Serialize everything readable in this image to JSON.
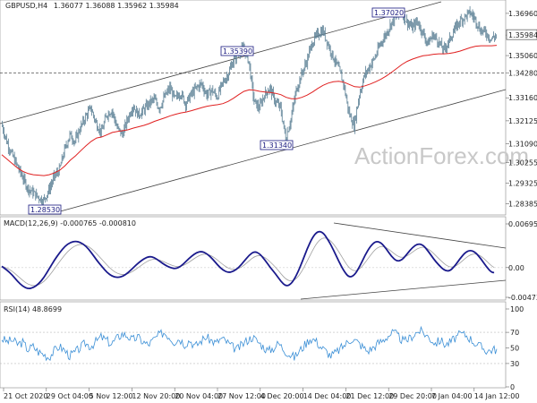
{
  "price_header": {
    "symbol": "GBPUSD,H4",
    "values": "1.36077 1.36088 1.35962 1.35984"
  },
  "macd_header": "MACD(12,26,9) -0.000765 -0.000810",
  "rsi_header": "RSI(14) 48.8699",
  "watermark": "ActionForex.com",
  "colors": {
    "price": "#5a7f94",
    "ma": "#e02020",
    "macd": "#1a1a8c",
    "signal": "#a0a0a0",
    "channel": "#333333",
    "rsi": "#3b8fd6"
  },
  "chart_data": [
    {
      "type": "line",
      "panel": "price",
      "y_ticks": [
        "1.36960",
        "1.35984",
        "1.35060",
        "1.34280",
        "1.33160",
        "1.32125",
        "1.31090",
        "1.30255",
        "1.29325",
        "1.28385"
      ],
      "ylim": [
        1.2805,
        1.374
      ],
      "current_price": "1.35984",
      "horizontal_line": "1.34280",
      "annotations": [
        "1.28530",
        "1.35390",
        "1.31340",
        "1.37020"
      ],
      "price_path": [
        1.32,
        1.312,
        1.306,
        1.301,
        1.296,
        1.291,
        1.289,
        1.287,
        1.2853,
        1.29,
        1.296,
        1.299,
        1.308,
        1.315,
        1.312,
        1.318,
        1.323,
        1.327,
        1.32,
        1.316,
        1.324,
        1.326,
        1.318,
        1.315,
        1.322,
        1.328,
        1.324,
        1.326,
        1.329,
        1.331,
        1.327,
        1.332,
        1.336,
        1.331,
        1.334,
        1.329,
        1.333,
        1.336,
        1.338,
        1.333,
        1.335,
        1.332,
        1.338,
        1.342,
        1.348,
        1.352,
        1.3539,
        1.348,
        1.33,
        1.327,
        1.333,
        1.336,
        1.33,
        1.327,
        1.3134,
        1.322,
        1.335,
        1.342,
        1.348,
        1.356,
        1.36,
        1.362,
        1.356,
        1.35,
        1.345,
        1.338,
        1.325,
        1.319,
        1.333,
        1.342,
        1.346,
        1.35,
        1.356,
        1.36,
        1.365,
        1.368,
        1.3702,
        1.366,
        1.363,
        1.366,
        1.361,
        1.356,
        1.36,
        1.357,
        1.353,
        1.357,
        1.362,
        1.366,
        1.368,
        1.37,
        1.367,
        1.362,
        1.361,
        1.358,
        1.3598
      ],
      "ma_path": [
        1.306,
        1.304,
        1.302,
        1.3,
        1.2985,
        1.2975,
        1.297,
        1.2968,
        1.2966,
        1.297,
        1.2978,
        1.299,
        1.301,
        1.3035,
        1.3055,
        1.3078,
        1.31,
        1.312,
        1.3135,
        1.314,
        1.315,
        1.316,
        1.3165,
        1.3168,
        1.3172,
        1.318,
        1.3186,
        1.3192,
        1.32,
        1.321,
        1.3218,
        1.3226,
        1.3235,
        1.3242,
        1.3248,
        1.3252,
        1.3258,
        1.3265,
        1.3272,
        1.3278,
        1.3282,
        1.3285,
        1.329,
        1.33,
        1.3314,
        1.333,
        1.3345,
        1.3352,
        1.335,
        1.3345,
        1.3342,
        1.334,
        1.3336,
        1.333,
        1.3318,
        1.3312,
        1.3312,
        1.3318,
        1.3328,
        1.3342,
        1.3358,
        1.3372,
        1.3382,
        1.3388,
        1.339,
        1.3386,
        1.3376,
        1.3366,
        1.3364,
        1.337,
        1.3378,
        1.3388,
        1.34,
        1.3414,
        1.343,
        1.3448,
        1.3466,
        1.348,
        1.349,
        1.3498,
        1.3505,
        1.3508,
        1.3512,
        1.3514,
        1.3514,
        1.3516,
        1.352,
        1.3526,
        1.3534,
        1.3542,
        1.3548,
        1.355,
        1.355,
        1.355,
        1.3552
      ]
    },
    {
      "type": "line",
      "panel": "macd",
      "y_ticks": [
        "0.006956",
        "0.00",
        "-0.004736"
      ],
      "ylim": [
        -0.004736,
        0.006956
      ],
      "macd": [
        0.0002,
        -0.0004,
        -0.0012,
        -0.0022,
        -0.003,
        -0.0034,
        -0.0032,
        -0.0026,
        -0.0016,
        -0.0002,
        0.0012,
        0.0024,
        0.0034,
        0.004,
        0.0042,
        0.004,
        0.0034,
        0.0024,
        0.0012,
        0.0002,
        -0.0008,
        -0.0014,
        -0.0016,
        -0.0014,
        -0.0008,
        0.0,
        0.0008,
        0.0014,
        0.0018,
        0.0016,
        0.001,
        0.0004,
        0.0,
        -0.0002,
        0.0002,
        0.001,
        0.0018,
        0.0024,
        0.0026,
        0.0022,
        0.0014,
        0.0004,
        -0.0004,
        -0.0008,
        -0.0006,
        0.0,
        0.001,
        0.002,
        0.0026,
        0.0022,
        0.0012,
        0.0,
        -0.001,
        -0.0022,
        -0.003,
        -0.0026,
        -0.0012,
        0.0008,
        0.003,
        0.0048,
        0.0058,
        0.0056,
        0.0044,
        0.0028,
        0.001,
        -0.0006,
        -0.0016,
        -0.0012,
        0.0002,
        0.002,
        0.0034,
        0.0042,
        0.004,
        0.003,
        0.0018,
        0.001,
        0.0012,
        0.0022,
        0.0032,
        0.0038,
        0.0036,
        0.0026,
        0.0014,
        0.0004,
        -0.0004,
        -0.0006,
        0.0002,
        0.0014,
        0.0024,
        0.0028,
        0.0024,
        0.0014,
        0.0002,
        -0.0008,
        -0.0008
      ]
    },
    {
      "type": "line",
      "panel": "rsi",
      "y_ticks": [
        "100",
        "70",
        "50",
        "30",
        "0"
      ],
      "ylim": [
        0,
        100
      ],
      "rsi": [
        62,
        58,
        60,
        55,
        57,
        48,
        52,
        45,
        42,
        38,
        46,
        52,
        47,
        40,
        44,
        50,
        56,
        52,
        58,
        64,
        60,
        55,
        62,
        68,
        66,
        60,
        64,
        58,
        54,
        60,
        66,
        70,
        65,
        58,
        62,
        55,
        60,
        52,
        58,
        64,
        60,
        56,
        62,
        58,
        52,
        48,
        54,
        60,
        64,
        58,
        52,
        46,
        50,
        56,
        48,
        42,
        38,
        46,
        54,
        62,
        60,
        52,
        46,
        40,
        44,
        50,
        56,
        62,
        58,
        52,
        46,
        50,
        56,
        60,
        66,
        70,
        64,
        58,
        62,
        68,
        72,
        68,
        62,
        56,
        60,
        54,
        58,
        64,
        68,
        66,
        60,
        54,
        50,
        46,
        48
      ]
    }
  ],
  "x_labels": [
    "21 Oct 2020",
    "29 Oct 04:00",
    "5 Nov 12:00",
    "12 Nov 20:00",
    "20 Nov 04:00",
    "27 Nov 12:00",
    "4 Dec 20:00",
    "14 Dec 04:00",
    "21 Dec 12:00",
    "29 Dec 20:00",
    "7 Jan 04:00",
    "14 Jan 12:00"
  ]
}
